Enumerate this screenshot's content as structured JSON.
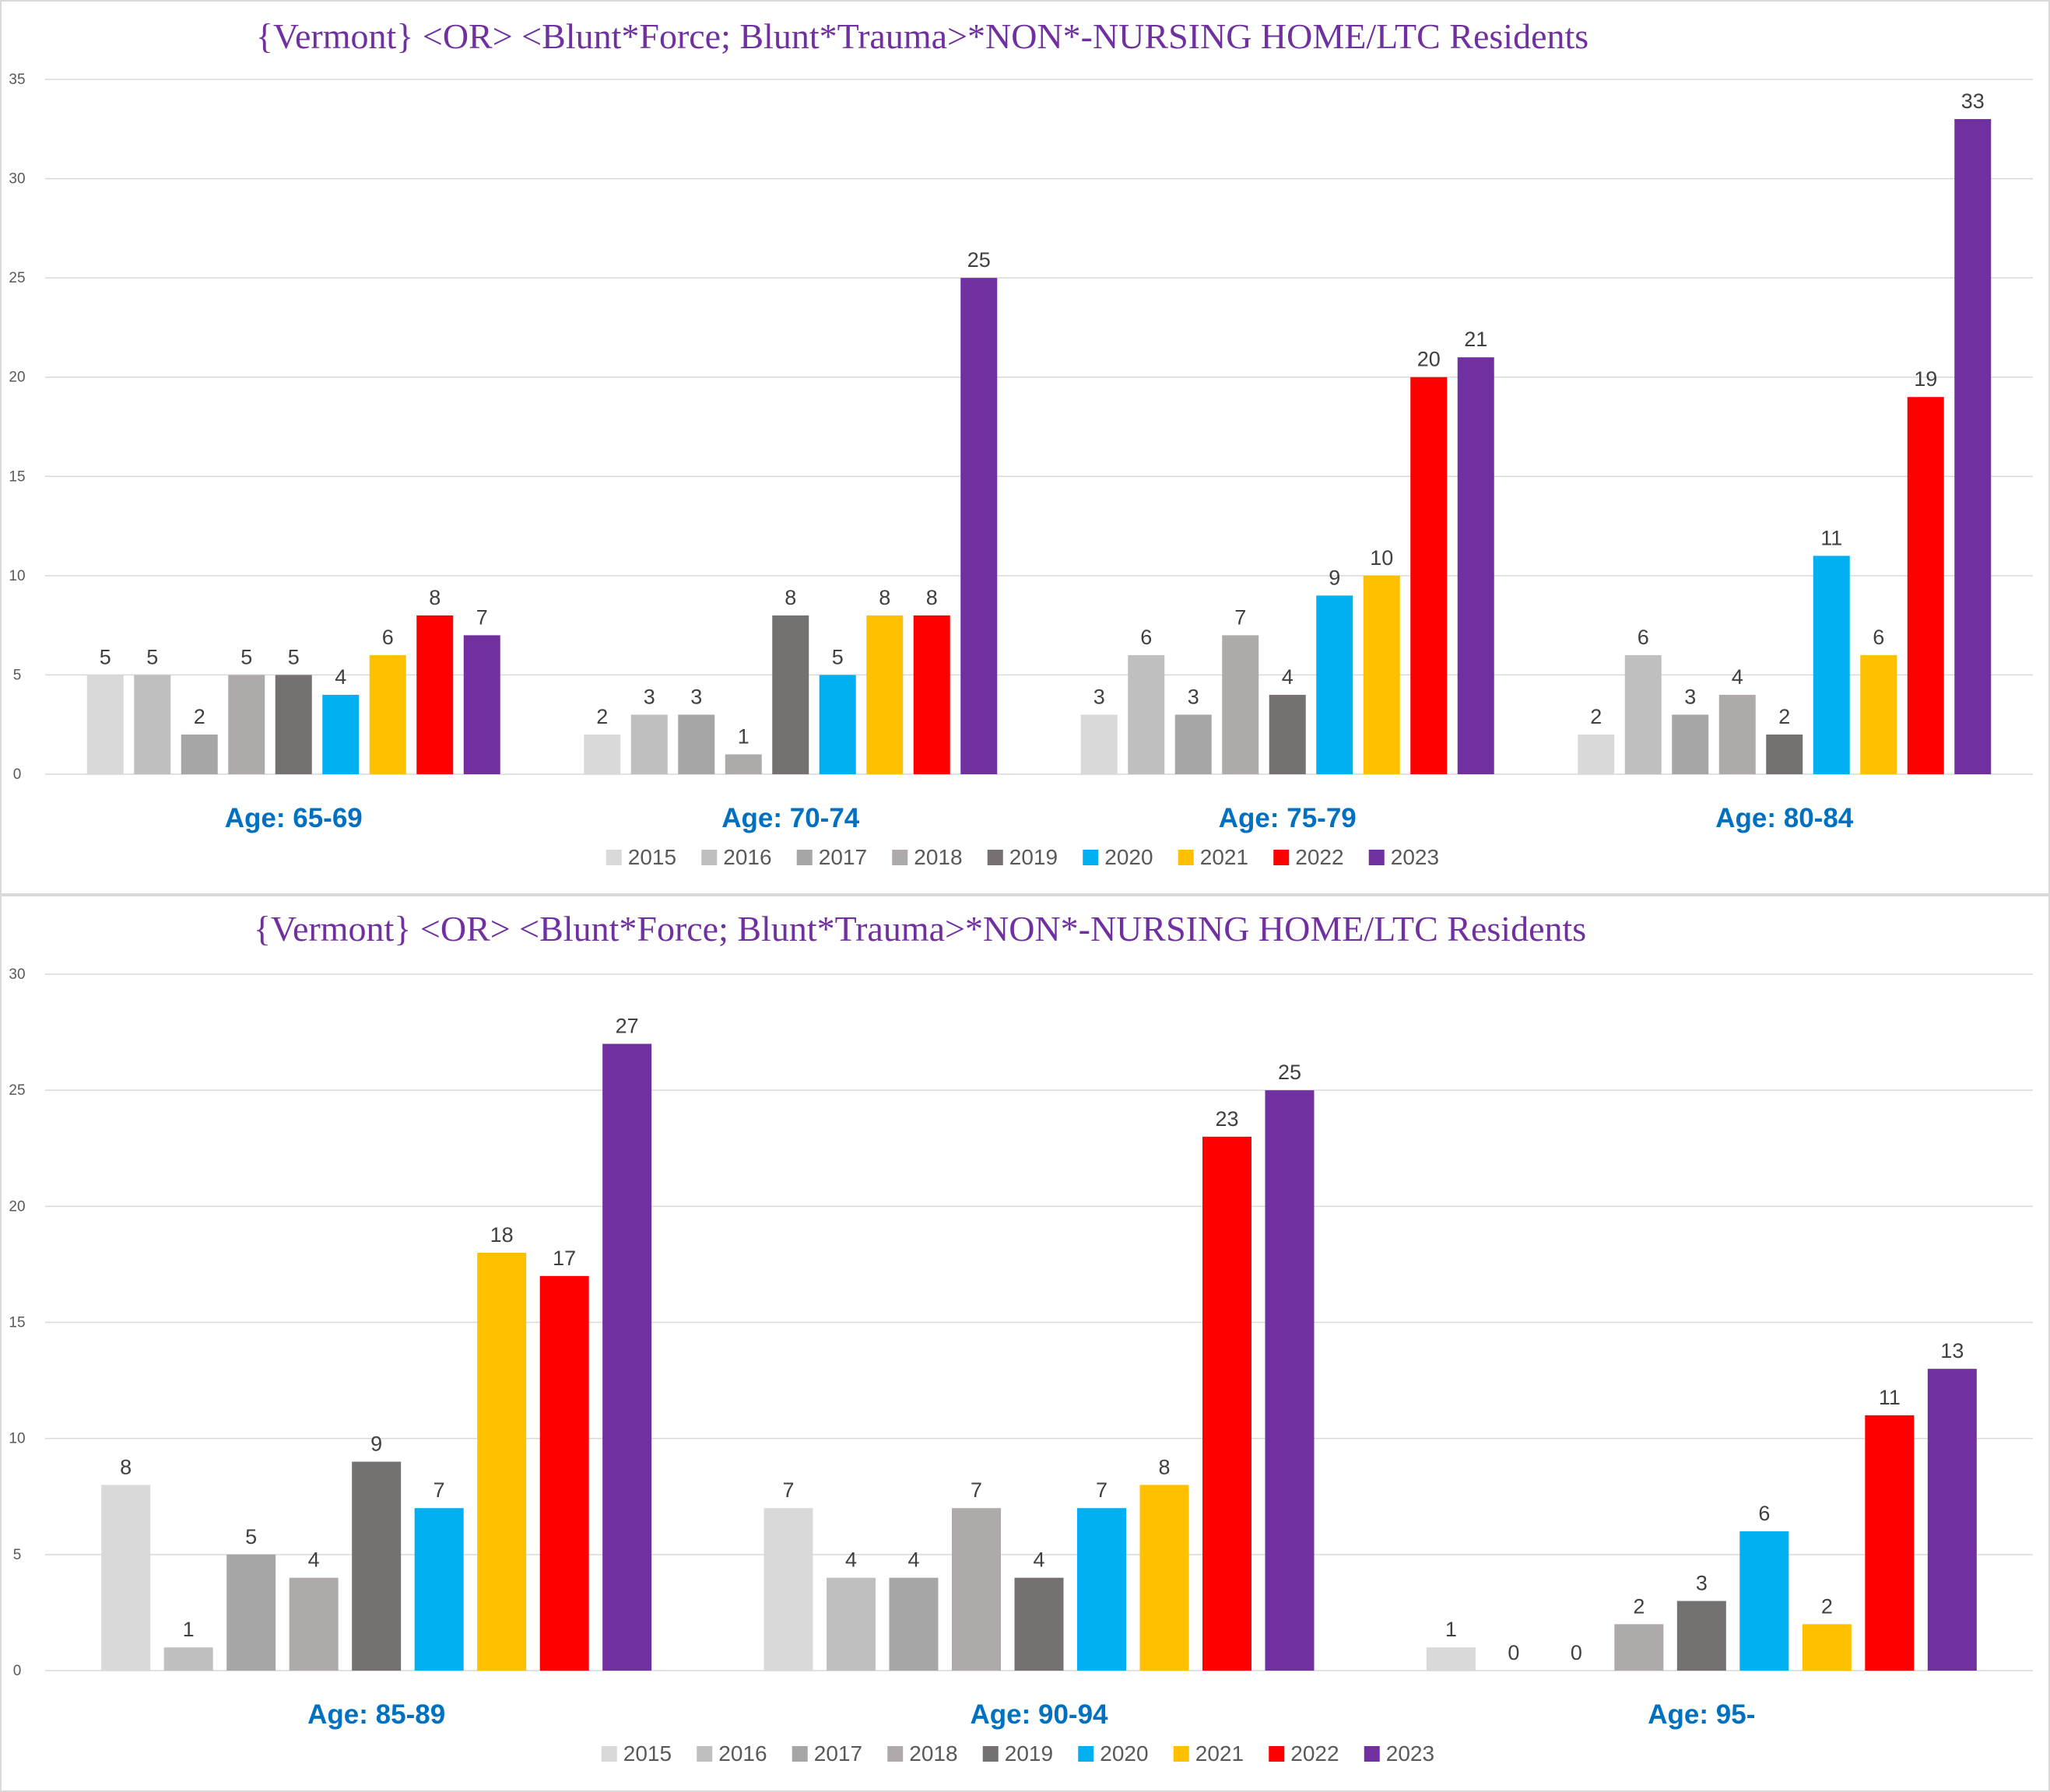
{
  "chart_data": [
    {
      "type": "bar",
      "title": "{Vermont}  <OR> <Blunt*Force; Blunt*Trauma>*NON*-NURSING HOME/LTC Residents",
      "xlabel": "",
      "ylabel": "",
      "ylim": [
        0,
        35
      ],
      "yticks": [
        "0",
        "5",
        "10",
        "15",
        "20",
        "25",
        "30",
        "35"
      ],
      "grid": true,
      "legend_position": "bottom",
      "categories": [
        "Age: 65-69",
        "Age: 70-74",
        "Age: 75-79",
        "Age: 80-84"
      ],
      "series": [
        {
          "name": "2015",
          "color": "#d9d9d9",
          "values": [
            5,
            2,
            3,
            2
          ]
        },
        {
          "name": "2016",
          "color": "#bfbfbf",
          "values": [
            5,
            3,
            6,
            6
          ]
        },
        {
          "name": "2017",
          "color": "#a6a6a6",
          "values": [
            2,
            3,
            3,
            3
          ]
        },
        {
          "name": "2018",
          "color": "#aeaaaa",
          "values": [
            5,
            1,
            7,
            4
          ]
        },
        {
          "name": "2019",
          "color": "#767171",
          "values": [
            5,
            8,
            4,
            2
          ]
        },
        {
          "name": "2020",
          "color": "#00b0f0",
          "values": [
            4,
            5,
            9,
            11
          ]
        },
        {
          "name": "2021",
          "color": "#ffc000",
          "values": [
            6,
            8,
            10,
            6
          ]
        },
        {
          "name": "2022",
          "color": "#ff0000",
          "values": [
            8,
            8,
            20,
            19
          ]
        },
        {
          "name": "2023",
          "color": "#7030a0",
          "values": [
            7,
            25,
            21,
            33
          ]
        }
      ]
    },
    {
      "type": "bar",
      "title": "{Vermont}  <OR> <Blunt*Force; Blunt*Trauma>*NON*-NURSING HOME/LTC Residents",
      "xlabel": "",
      "ylabel": "",
      "ylim": [
        0,
        30
      ],
      "yticks": [
        "0",
        "5",
        "10",
        "15",
        "20",
        "25",
        "30"
      ],
      "grid": true,
      "legend_position": "bottom",
      "categories": [
        "Age: 85-89",
        "Age: 90-94",
        "Age: 95-"
      ],
      "series": [
        {
          "name": "2015",
          "color": "#d9d9d9",
          "values": [
            8,
            7,
            1
          ]
        },
        {
          "name": "2016",
          "color": "#bfbfbf",
          "values": [
            1,
            4,
            0
          ]
        },
        {
          "name": "2017",
          "color": "#a6a6a6",
          "values": [
            5,
            4,
            0
          ]
        },
        {
          "name": "2018",
          "color": "#aeaaaa",
          "values": [
            4,
            7,
            2
          ]
        },
        {
          "name": "2019",
          "color": "#767171",
          "values": [
            9,
            4,
            3
          ]
        },
        {
          "name": "2020",
          "color": "#00b0f0",
          "values": [
            7,
            7,
            6
          ]
        },
        {
          "name": "2021",
          "color": "#ffc000",
          "values": [
            18,
            8,
            2
          ]
        },
        {
          "name": "2022",
          "color": "#ff0000",
          "values": [
            17,
            23,
            11
          ]
        },
        {
          "name": "2023",
          "color": "#7030a0",
          "values": [
            27,
            25,
            13
          ]
        }
      ]
    }
  ]
}
